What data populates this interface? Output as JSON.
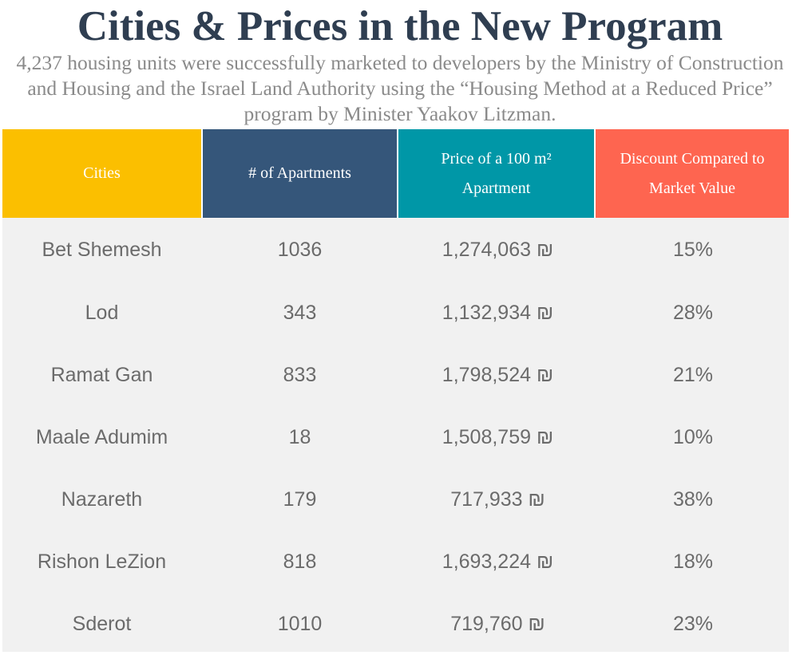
{
  "header": {
    "title": "Cities & Prices in the New Program",
    "subtitle": "4,237 housing units were successfully marketed to developers by the Ministry of Construction and Housing and the Israel Land Authority using the “Housing Method at a Reduced Price” program by Minister Yaakov Litzman."
  },
  "colors": {
    "title": "#2f3e51",
    "col_cities": "#fbbf00",
    "col_apartments": "#35567a",
    "col_price": "#0097a7",
    "col_discount": "#fe6550",
    "table_body": "#f1f1f1"
  },
  "chart_data": {
    "type": "table",
    "title": "Cities & Prices in the New Program",
    "columns": [
      "Cities",
      "# of Apartments",
      "Price of a 100 m² Apartment",
      "Discount Compared to Market Value"
    ],
    "rows": [
      [
        "Bet Shemesh",
        "1036",
        "1,274,063 ₪",
        "15%"
      ],
      [
        "Lod",
        "343",
        "1,132,934 ₪",
        "28%"
      ],
      [
        "Ramat Gan",
        "833",
        "1,798,524 ₪",
        "21%"
      ],
      [
        "Maale Adumim",
        "18",
        "1,508,759 ₪",
        "10%"
      ],
      [
        "Nazareth",
        "179",
        "717,933 ₪",
        "38%"
      ],
      [
        "Rishon LeZion",
        "818",
        "1,693,224 ₪",
        "18%"
      ],
      [
        "Sderot",
        "1010",
        "719,760 ₪",
        "23%"
      ]
    ]
  }
}
